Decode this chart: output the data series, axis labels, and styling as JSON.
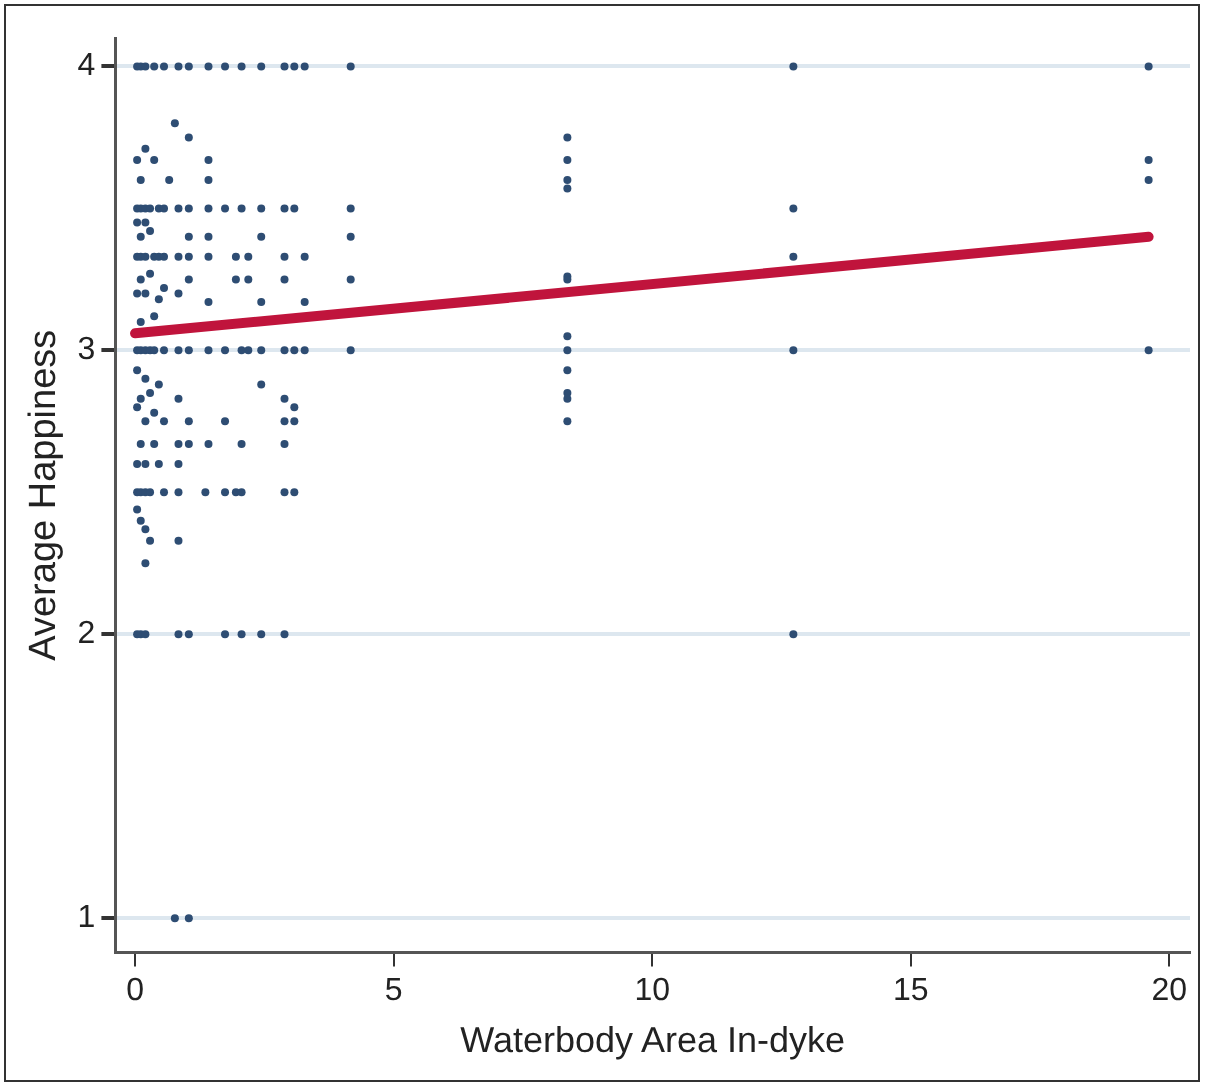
{
  "chart_data": {
    "type": "scatter",
    "xlabel": "Waterbody Area In-dyke",
    "ylabel": "Average Happiness",
    "xlim": [
      -0.38,
      20.4
    ],
    "ylim": [
      0.88,
      4.1
    ],
    "xticks": [
      0,
      5,
      10,
      15,
      20
    ],
    "yticks": [
      1,
      2,
      3,
      4
    ],
    "grid": "y",
    "legend": false,
    "marker": "circle",
    "series": [
      {
        "color": "#2e4d73",
        "x": [
          0.04,
          0.11,
          0.2,
          0.37,
          0.56,
          0.84,
          1.04,
          1.42,
          1.74,
          2.06,
          2.44,
          2.89,
          3.08,
          3.28,
          4.17,
          12.73,
          19.6,
          0.04,
          0.11,
          0.2,
          0.29,
          0.46,
          0.56,
          0.84,
          1.04,
          1.42,
          1.74,
          2.06,
          2.44,
          2.89,
          3.08,
          4.17,
          12.73,
          0.04,
          0.11,
          0.2,
          0.37,
          0.46,
          0.56,
          0.84,
          1.04,
          1.42,
          1.95,
          2.19,
          2.89,
          3.28,
          0.04,
          0.11,
          0.2,
          0.29,
          0.37,
          0.56,
          0.84,
          1.04,
          1.42,
          1.74,
          2.06,
          2.19,
          2.44,
          2.89,
          3.08,
          3.28,
          4.17,
          8.36,
          12.73,
          19.6,
          0.04,
          0.11,
          0.2,
          0.29,
          0.56,
          0.84,
          1.36,
          1.74,
          1.95,
          2.06,
          2.89,
          3.08,
          0.04,
          0.11,
          0.2,
          0.84,
          1.04,
          1.74,
          2.06,
          2.44,
          2.89,
          12.73,
          0.77,
          1.04,
          0.77,
          1.04,
          0.2,
          0.04,
          0.37,
          1.42,
          0.11,
          0.66,
          1.42,
          0.04,
          0.2,
          0.11,
          0.29,
          1.04,
          1.42,
          2.44,
          4.17,
          0.11,
          0.29,
          0.56,
          1.04,
          1.95,
          2.19,
          2.89,
          4.17,
          0.04,
          0.2,
          0.46,
          0.84,
          1.42,
          2.44,
          3.28,
          0.11,
          0.37,
          0.04,
          0.2,
          0.46,
          2.44,
          0.11,
          0.29,
          0.84,
          2.89,
          0.04,
          0.37,
          3.08,
          0.2,
          0.56,
          1.04,
          1.74,
          2.89,
          3.08,
          0.11,
          0.37,
          0.84,
          1.04,
          1.42,
          2.06,
          2.89,
          0.04,
          0.2,
          0.46,
          0.84,
          0.11,
          0.2,
          0.04,
          0.29,
          0.84,
          0.2,
          8.36,
          8.36,
          8.36,
          8.36,
          8.36,
          8.36,
          8.36,
          8.36,
          8.36,
          8.36,
          8.36,
          12.73,
          19.6,
          19.6
        ],
        "values": [
          4,
          4,
          4,
          4,
          4,
          4,
          4,
          4,
          4,
          4,
          4,
          4,
          4,
          4,
          4,
          4,
          4,
          3.5,
          3.5,
          3.5,
          3.5,
          3.5,
          3.5,
          3.5,
          3.5,
          3.5,
          3.5,
          3.5,
          3.5,
          3.5,
          3.5,
          3.5,
          3.5,
          3.33,
          3.33,
          3.33,
          3.33,
          3.33,
          3.33,
          3.33,
          3.33,
          3.33,
          3.33,
          3.33,
          3.33,
          3.33,
          3,
          3,
          3,
          3,
          3,
          3,
          3,
          3,
          3,
          3,
          3,
          3,
          3,
          3,
          3,
          3,
          3,
          3,
          3,
          3,
          2.5,
          2.5,
          2.5,
          2.5,
          2.5,
          2.5,
          2.5,
          2.5,
          2.5,
          2.5,
          2.5,
          2.5,
          2,
          2,
          2,
          2,
          2,
          2,
          2,
          2,
          2,
          2,
          1,
          1,
          3.8,
          3.75,
          3.71,
          3.67,
          3.67,
          3.67,
          3.6,
          3.6,
          3.6,
          3.45,
          3.45,
          3.4,
          3.42,
          3.4,
          3.4,
          3.4,
          3.4,
          3.25,
          3.27,
          3.22,
          3.25,
          3.25,
          3.25,
          3.25,
          3.25,
          3.2,
          3.2,
          3.18,
          3.2,
          3.17,
          3.17,
          3.17,
          3.1,
          3.12,
          2.93,
          2.9,
          2.88,
          2.88,
          2.83,
          2.85,
          2.83,
          2.83,
          2.8,
          2.78,
          2.8,
          2.75,
          2.75,
          2.75,
          2.75,
          2.75,
          2.75,
          2.67,
          2.67,
          2.67,
          2.67,
          2.67,
          2.67,
          2.67,
          2.6,
          2.6,
          2.6,
          2.6,
          2.4,
          2.37,
          2.44,
          2.33,
          2.33,
          2.25,
          3.75,
          3.67,
          3.6,
          3.57,
          3.26,
          3.25,
          3.05,
          2.93,
          2.85,
          2.83,
          2.75,
          3.33,
          3.67,
          3.6
        ]
      },
      {
        "type": "line",
        "color": "#c0143c",
        "marker": "none",
        "x": [
          0,
          19.6
        ],
        "values": [
          3.06,
          3.4
        ]
      }
    ]
  }
}
